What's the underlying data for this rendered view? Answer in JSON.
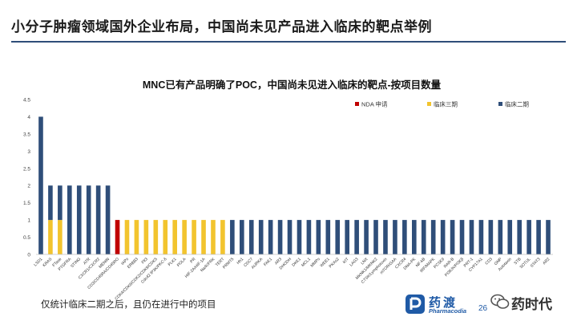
{
  "page": {
    "title": "小分子肿瘤领域国外企业布局，中国尚未见产品进入临床的靶点举例",
    "footnote": "仅统计临床二期之后，且仍在进行中的项目",
    "page_number": "26",
    "logo": {
      "name": "药渡",
      "subtitle": "Pharmacodia"
    },
    "watermark": {
      "name": "药时代"
    }
  },
  "colors": {
    "nda": "#c00000",
    "phase3": "#f2c42e",
    "phase2": "#2f4e79",
    "rule": "#2f4e79"
  },
  "chart_data": {
    "type": "bar",
    "stacked": true,
    "title": "MNC已有产品明确了POC，中国尚未见进入临床的靶点-按项目数量",
    "ylim": [
      0,
      4.5
    ],
    "yticks": [
      "0",
      "0.5",
      "1",
      "1.5",
      "2",
      "2.5",
      "3",
      "3.5",
      "4",
      "4.5"
    ],
    "categories": [
      "LSD1",
      "KRAS",
      "FTase",
      "PTGFRA",
      "STING",
      "ATR",
      "CXCR1/CXCR2",
      "MENIN",
      "CD3/CD45RA/CD45RO",
      "IAPs",
      "ERBB3",
      "Flt3",
      "CDK4/CDK6/CDK2/CDK9/CDK5",
      "Cdc42 IP3K/PKC-δ",
      "PLK1",
      "POLA",
      "PR",
      "HIF-2A/HIF-1A",
      "Na/K/FRK",
      "TERT",
      "PRMT5",
      "Hh1",
      "CDC7",
      "AURKA",
      "FAK1",
      "AR3",
      "DHODH",
      "DKK1",
      "MCL1",
      "MMPs",
      "WEE1",
      "PKAs2",
      "KIT",
      "LAG3",
      "LNX",
      "MKNK1/MKNK2",
      "CTSK/Lymphotoxin",
      "mTOR/GAA",
      "CXCR4",
      "DNA-PK",
      "NF-kB",
      "IRF/MAPK",
      "PCSK9",
      "RAR-B",
      "PI3K/K/PI3Kβ",
      "PRT-1",
      "CYP17A1",
      "CD3",
      "GNP",
      "Autotaxin",
      "STB",
      "SOTUL",
      "STAT3",
      "AR2"
    ],
    "series": [
      {
        "name": "NDA 申请",
        "color": "#c00000",
        "values": [
          0,
          0,
          0,
          0,
          0,
          0,
          0,
          0,
          1,
          0,
          0,
          0,
          0,
          0,
          0,
          0,
          0,
          0,
          0,
          0,
          0,
          0,
          0,
          0,
          0,
          0,
          0,
          0,
          0,
          0,
          0,
          0,
          0,
          0,
          0,
          0,
          0,
          0,
          0,
          0,
          0,
          0,
          0,
          0,
          0,
          0,
          0,
          0,
          0,
          0,
          0,
          0,
          0,
          0
        ]
      },
      {
        "name": "临床三期",
        "color": "#f2c42e",
        "values": [
          0,
          1,
          1,
          0,
          0,
          0,
          0,
          0,
          0,
          1,
          1,
          1,
          1,
          1,
          1,
          1,
          1,
          1,
          1,
          1,
          0,
          0,
          0,
          0,
          0,
          0,
          0,
          0,
          0,
          0,
          0,
          0,
          0,
          0,
          0,
          0,
          0,
          0,
          0,
          0,
          0,
          0,
          0,
          0,
          0,
          0,
          0,
          0,
          0,
          0,
          0,
          0,
          0,
          0
        ]
      },
      {
        "name": "临床二期",
        "color": "#2f4e79",
        "values": [
          4,
          1,
          1,
          2,
          2,
          2,
          2,
          2,
          0,
          0,
          0,
          0,
          0,
          0,
          0,
          0,
          0,
          0,
          0,
          0,
          1,
          1,
          1,
          1,
          1,
          1,
          1,
          1,
          1,
          1,
          1,
          1,
          1,
          1,
          1,
          1,
          1,
          1,
          1,
          1,
          1,
          1,
          1,
          1,
          1,
          1,
          1,
          1,
          1,
          1,
          1,
          1,
          1,
          1
        ]
      }
    ]
  }
}
